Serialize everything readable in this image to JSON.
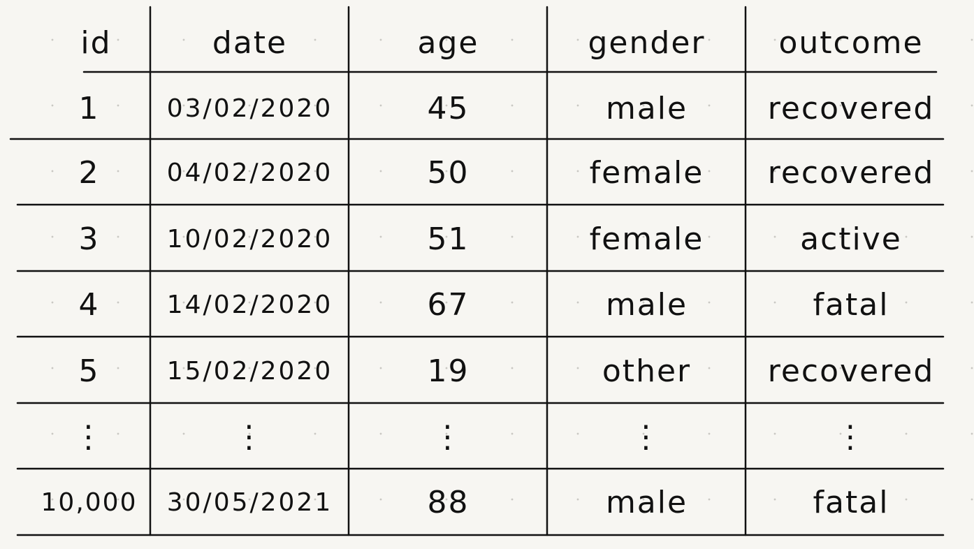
{
  "table": {
    "headers": {
      "id": "id",
      "date": "date",
      "age": "age",
      "gender": "gender",
      "outcome": "outcome"
    },
    "rows": [
      {
        "id": "1",
        "date": "03/02/2020",
        "age": "45",
        "gender": "male",
        "outcome": "recovered"
      },
      {
        "id": "2",
        "date": "04/02/2020",
        "age": "50",
        "gender": "female",
        "outcome": "recovered"
      },
      {
        "id": "3",
        "date": "10/02/2020",
        "age": "51",
        "gender": "female",
        "outcome": "active"
      },
      {
        "id": "4",
        "date": "14/02/2020",
        "age": "67",
        "gender": "male",
        "outcome": "fatal"
      },
      {
        "id": "5",
        "date": "15/02/2020",
        "age": "19",
        "gender": "other",
        "outcome": "recovered"
      }
    ],
    "ellipsis": "⋮",
    "last_row": {
      "id": "10,000",
      "date": "30/05/2021",
      "age": "88",
      "gender": "male",
      "outcome": "fatal"
    }
  }
}
